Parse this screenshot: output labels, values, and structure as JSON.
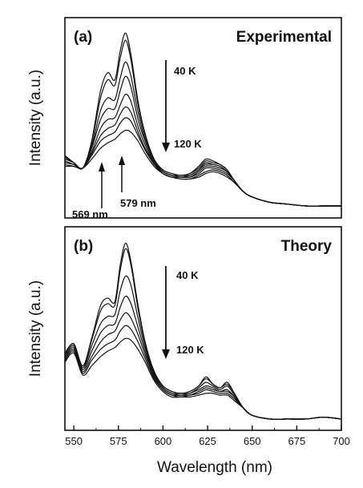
{
  "chart_data": [
    {
      "type": "line",
      "panel_label": "(a)",
      "title": "Experimental",
      "xlabel": "",
      "ylabel": "Intensity (a.u.)",
      "xlim": [
        545,
        700
      ],
      "ylim": [
        0,
        1.05
      ],
      "x_ticks_shown": false,
      "annotations": {
        "temp_high": "40 K",
        "temp_low": "120 K",
        "peak1": "569 nm",
        "peak2": "579 nm"
      },
      "x": [
        545,
        550,
        555,
        560,
        565,
        569,
        573,
        576,
        579,
        582,
        586,
        590,
        595,
        600,
        605,
        610,
        615,
        620,
        624,
        628,
        632,
        636,
        640,
        645,
        650,
        660,
        670,
        680,
        690,
        700
      ],
      "series": [
        {
          "values": [
            0.32,
            0.28,
            0.25,
            0.4,
            0.68,
            0.78,
            0.74,
            0.9,
            1.0,
            0.88,
            0.62,
            0.44,
            0.3,
            0.24,
            0.22,
            0.21,
            0.22,
            0.26,
            0.3,
            0.29,
            0.27,
            0.24,
            0.18,
            0.12,
            0.09,
            0.06,
            0.05,
            0.04,
            0.04,
            0.04
          ]
        },
        {
          "values": [
            0.32,
            0.28,
            0.25,
            0.39,
            0.64,
            0.74,
            0.71,
            0.86,
            0.96,
            0.85,
            0.6,
            0.43,
            0.3,
            0.24,
            0.22,
            0.21,
            0.22,
            0.25,
            0.29,
            0.28,
            0.27,
            0.24,
            0.18,
            0.12,
            0.09,
            0.06,
            0.05,
            0.04,
            0.04,
            0.04
          ]
        },
        {
          "values": [
            0.31,
            0.28,
            0.25,
            0.37,
            0.57,
            0.64,
            0.63,
            0.75,
            0.84,
            0.76,
            0.56,
            0.41,
            0.29,
            0.23,
            0.21,
            0.21,
            0.21,
            0.24,
            0.28,
            0.27,
            0.26,
            0.23,
            0.18,
            0.12,
            0.09,
            0.06,
            0.05,
            0.04,
            0.04,
            0.04
          ]
        },
        {
          "values": [
            0.3,
            0.28,
            0.25,
            0.36,
            0.52,
            0.58,
            0.58,
            0.68,
            0.76,
            0.7,
            0.52,
            0.4,
            0.29,
            0.23,
            0.21,
            0.2,
            0.21,
            0.24,
            0.27,
            0.27,
            0.26,
            0.23,
            0.18,
            0.12,
            0.09,
            0.06,
            0.05,
            0.04,
            0.04,
            0.04
          ]
        },
        {
          "values": [
            0.29,
            0.27,
            0.25,
            0.34,
            0.47,
            0.52,
            0.53,
            0.6,
            0.66,
            0.62,
            0.48,
            0.38,
            0.28,
            0.23,
            0.21,
            0.2,
            0.2,
            0.23,
            0.26,
            0.26,
            0.25,
            0.23,
            0.18,
            0.12,
            0.09,
            0.06,
            0.05,
            0.04,
            0.04,
            0.04
          ]
        },
        {
          "values": [
            0.28,
            0.27,
            0.25,
            0.33,
            0.43,
            0.47,
            0.49,
            0.55,
            0.59,
            0.56,
            0.45,
            0.36,
            0.28,
            0.22,
            0.2,
            0.2,
            0.2,
            0.22,
            0.25,
            0.25,
            0.24,
            0.22,
            0.18,
            0.12,
            0.09,
            0.06,
            0.05,
            0.04,
            0.04,
            0.04
          ]
        },
        {
          "values": [
            0.27,
            0.26,
            0.25,
            0.32,
            0.4,
            0.43,
            0.45,
            0.5,
            0.53,
            0.51,
            0.43,
            0.35,
            0.27,
            0.22,
            0.2,
            0.19,
            0.19,
            0.21,
            0.23,
            0.24,
            0.23,
            0.21,
            0.17,
            0.12,
            0.09,
            0.06,
            0.05,
            0.04,
            0.04,
            0.04
          ]
        },
        {
          "values": [
            0.26,
            0.26,
            0.25,
            0.3,
            0.36,
            0.39,
            0.41,
            0.44,
            0.46,
            0.45,
            0.4,
            0.33,
            0.26,
            0.22,
            0.2,
            0.19,
            0.19,
            0.2,
            0.22,
            0.23,
            0.22,
            0.2,
            0.17,
            0.12,
            0.09,
            0.06,
            0.05,
            0.04,
            0.04,
            0.04
          ]
        }
      ]
    },
    {
      "type": "line",
      "panel_label": "(b)",
      "title": "Theory",
      "xlabel": "Wavelength (nm)",
      "ylabel": "Intensity (a.u.)",
      "xlim": [
        545,
        700
      ],
      "ylim": [
        0,
        1.05
      ],
      "x_ticks": [
        550,
        575,
        600,
        625,
        650,
        675,
        700
      ],
      "annotations": {
        "temp_high": "40 K",
        "temp_low": "120 K"
      },
      "x": [
        545,
        550,
        555,
        560,
        565,
        569,
        573,
        576,
        579,
        582,
        586,
        590,
        595,
        600,
        605,
        610,
        615,
        620,
        624,
        628,
        632,
        636,
        640,
        645,
        650,
        660,
        670,
        680,
        690,
        700
      ],
      "series": [
        {
          "values": [
            0.4,
            0.45,
            0.33,
            0.48,
            0.66,
            0.7,
            0.68,
            0.88,
            1.0,
            0.9,
            0.66,
            0.46,
            0.3,
            0.22,
            0.19,
            0.18,
            0.19,
            0.22,
            0.27,
            0.23,
            0.21,
            0.24,
            0.18,
            0.1,
            0.06,
            0.04,
            0.04,
            0.04,
            0.05,
            0.04
          ]
        },
        {
          "values": [
            0.4,
            0.45,
            0.33,
            0.47,
            0.63,
            0.67,
            0.66,
            0.85,
            0.97,
            0.88,
            0.64,
            0.45,
            0.3,
            0.22,
            0.19,
            0.18,
            0.19,
            0.22,
            0.26,
            0.23,
            0.21,
            0.23,
            0.18,
            0.1,
            0.06,
            0.04,
            0.04,
            0.04,
            0.05,
            0.04
          ]
        },
        {
          "values": [
            0.39,
            0.44,
            0.32,
            0.44,
            0.56,
            0.6,
            0.61,
            0.74,
            0.82,
            0.77,
            0.59,
            0.43,
            0.29,
            0.21,
            0.18,
            0.18,
            0.18,
            0.21,
            0.24,
            0.22,
            0.2,
            0.22,
            0.17,
            0.1,
            0.06,
            0.04,
            0.04,
            0.04,
            0.05,
            0.04
          ]
        },
        {
          "values": [
            0.38,
            0.43,
            0.31,
            0.41,
            0.51,
            0.55,
            0.56,
            0.65,
            0.71,
            0.67,
            0.54,
            0.41,
            0.28,
            0.21,
            0.18,
            0.17,
            0.18,
            0.2,
            0.22,
            0.21,
            0.19,
            0.2,
            0.16,
            0.1,
            0.06,
            0.04,
            0.04,
            0.04,
            0.05,
            0.04
          ]
        },
        {
          "values": [
            0.37,
            0.42,
            0.3,
            0.38,
            0.46,
            0.5,
            0.52,
            0.58,
            0.62,
            0.59,
            0.5,
            0.39,
            0.27,
            0.2,
            0.17,
            0.17,
            0.17,
            0.19,
            0.21,
            0.2,
            0.19,
            0.19,
            0.16,
            0.1,
            0.06,
            0.04,
            0.04,
            0.04,
            0.05,
            0.04
          ]
        },
        {
          "values": [
            0.36,
            0.41,
            0.29,
            0.36,
            0.42,
            0.45,
            0.47,
            0.52,
            0.55,
            0.53,
            0.46,
            0.37,
            0.26,
            0.2,
            0.17,
            0.16,
            0.17,
            0.18,
            0.2,
            0.19,
            0.18,
            0.18,
            0.15,
            0.1,
            0.06,
            0.04,
            0.04,
            0.04,
            0.05,
            0.04
          ]
        },
        {
          "values": [
            0.35,
            0.4,
            0.28,
            0.33,
            0.38,
            0.41,
            0.43,
            0.46,
            0.48,
            0.47,
            0.42,
            0.35,
            0.25,
            0.19,
            0.16,
            0.16,
            0.16,
            0.17,
            0.18,
            0.18,
            0.17,
            0.17,
            0.14,
            0.1,
            0.06,
            0.04,
            0.04,
            0.04,
            0.05,
            0.04
          ]
        }
      ]
    }
  ]
}
